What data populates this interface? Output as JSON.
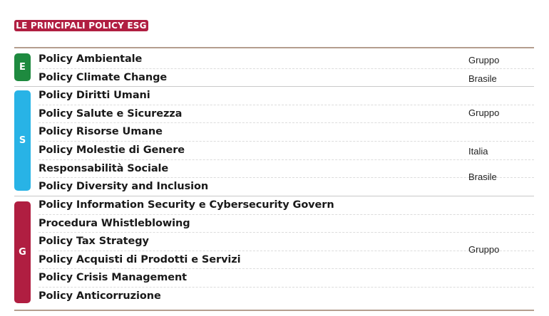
{
  "title": "LE PRINCIPALI POLICY ESG",
  "colors": {
    "E": "#1e8a3f",
    "S": "#28b3e6",
    "G": "#b01e41",
    "title_bg": "#b01e41"
  },
  "groups": [
    {
      "letter": "E",
      "policies": [
        "Policy Ambientale",
        "Policy Climate Change"
      ],
      "scopes": [
        "Gruppo",
        "Brasile"
      ]
    },
    {
      "letter": "S",
      "policies": [
        "Policy Diritti Umani",
        "Policy Salute e Sicurezza",
        "Policy Risorse Umane",
        "Policy Molestie di Genere",
        "Responsabilità Sociale",
        "Policy Diversity and Inclusion"
      ],
      "scopes": [
        "Gruppo",
        "Italia",
        "Brasile"
      ]
    },
    {
      "letter": "G",
      "policies": [
        "Policy Information Security e Cybersecurity Govern",
        "Procedura Whistleblowing",
        "Policy Tax Strategy",
        "Policy Acquisti di Prodotti e Servizi",
        "Policy Crisis Management",
        "Policy Anticorruzione"
      ],
      "scopes": [
        "Gruppo"
      ]
    }
  ]
}
